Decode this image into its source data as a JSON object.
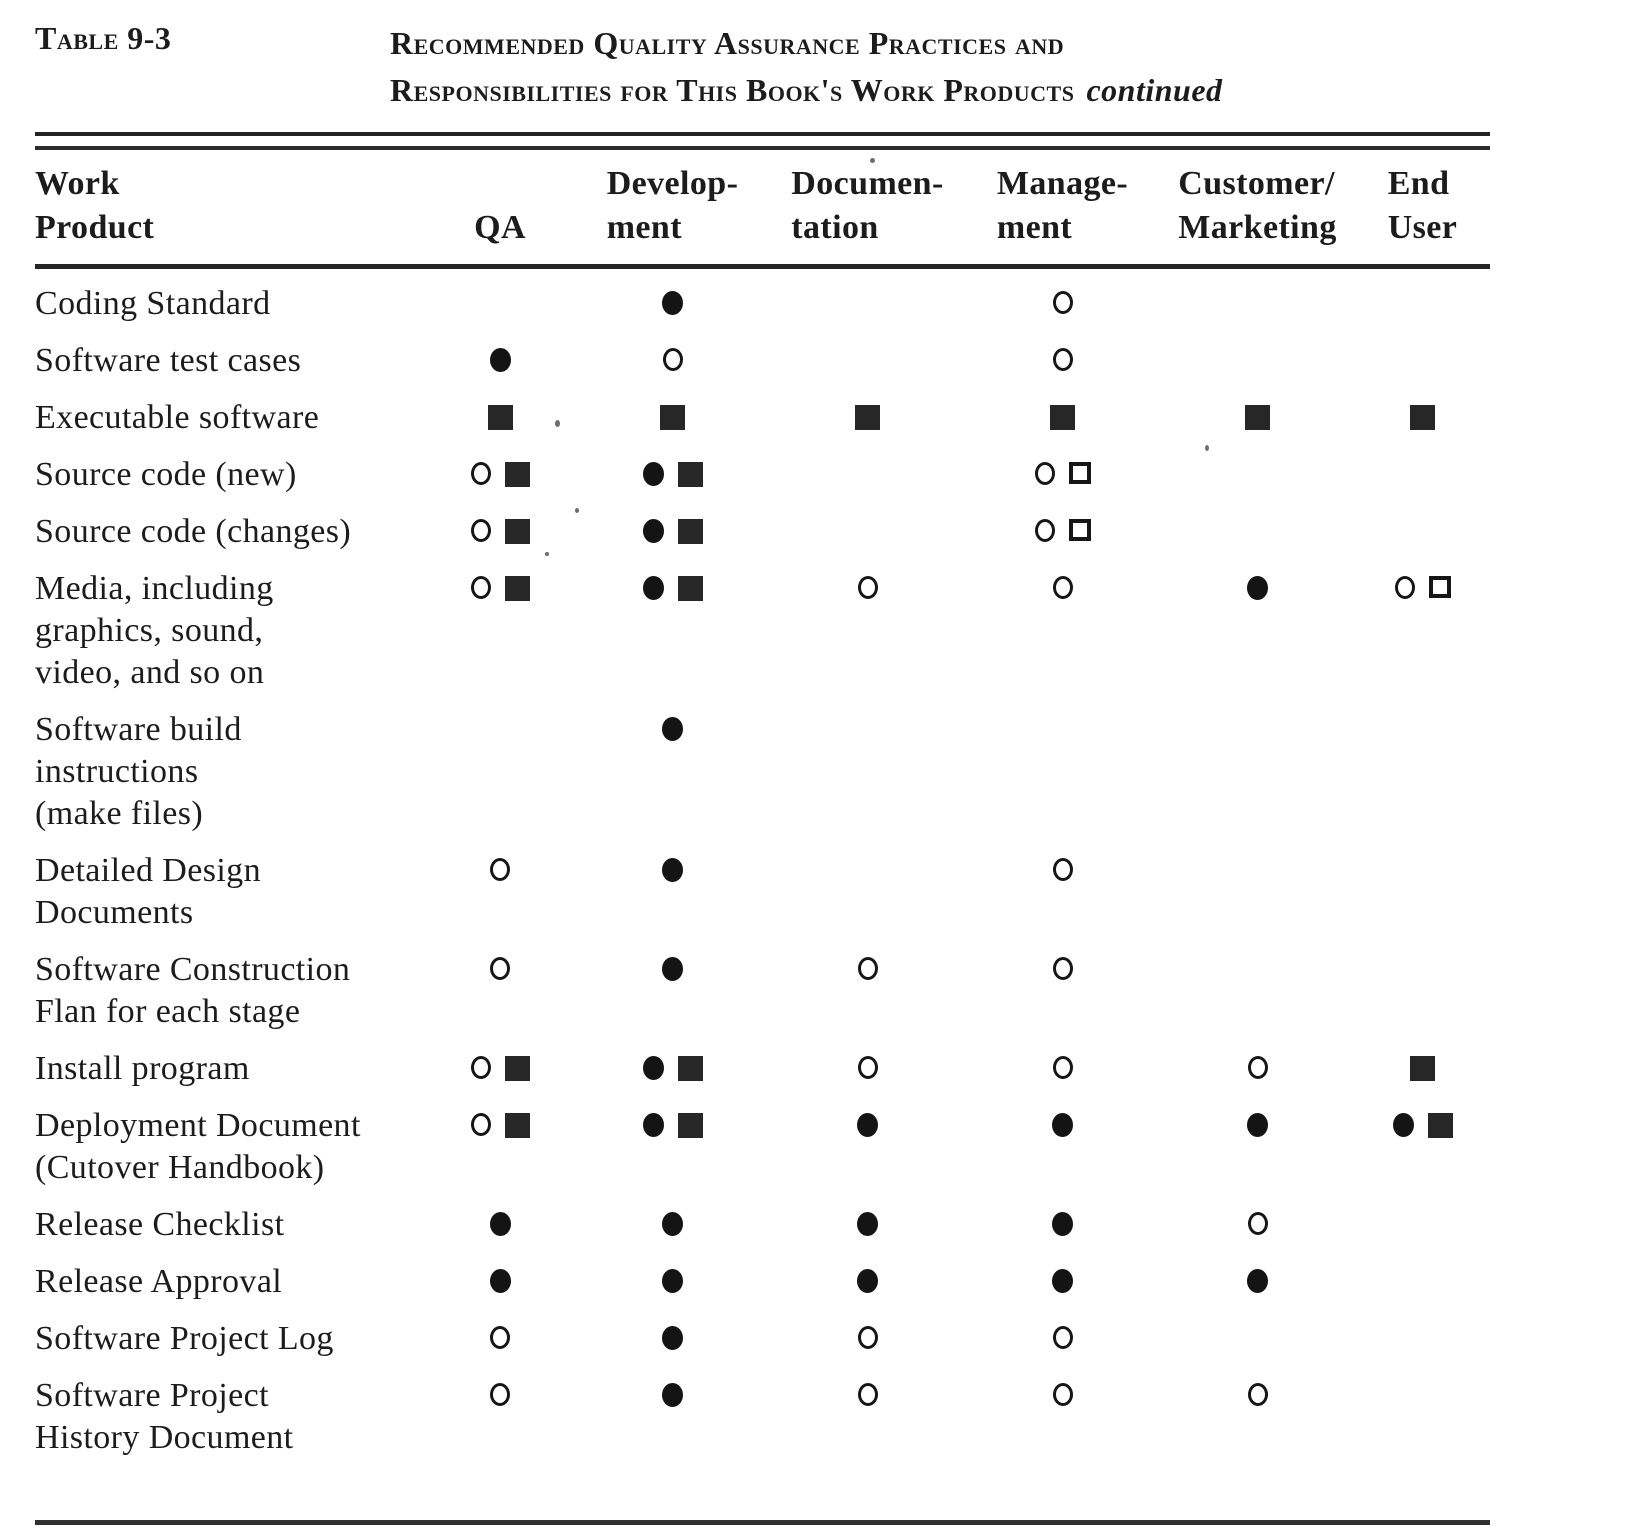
{
  "caption": {
    "label": "Table 9-3",
    "title_line1": "Recommended Quality Assurance Practices and",
    "title_line2": "Responsibilities for This Book's Work Products",
    "continued": "continued"
  },
  "icons": {
    "filled-circle-icon": "●",
    "open-circle-icon": "○",
    "filled-square-icon": "■",
    "open-square-icon": "□"
  },
  "table": {
    "header": {
      "work_product": "Work\nProduct",
      "keys": [
        "qa",
        "development",
        "documentation",
        "management",
        "customer-marketing",
        "end-user"
      ],
      "columns": [
        "QA",
        "Develop-\nment",
        "Documen-\ntation",
        "Manage-\nment",
        "Customer/\nMarketing",
        "End\nUser"
      ]
    },
    "rows": [
      {
        "label": "Coding Standard",
        "cells": [
          [],
          [
            "●"
          ],
          [],
          [
            "○"
          ],
          [],
          []
        ]
      },
      {
        "label": "Software test cases",
        "cells": [
          [
            "●"
          ],
          [
            "○"
          ],
          [],
          [
            "○"
          ],
          [],
          []
        ]
      },
      {
        "label": "Executable software",
        "cells": [
          [
            "■"
          ],
          [
            "■"
          ],
          [
            "■"
          ],
          [
            "■"
          ],
          [
            "■"
          ],
          [
            "■"
          ]
        ]
      },
      {
        "label": "Source code (new)",
        "cells": [
          [
            "○",
            "■"
          ],
          [
            "●",
            "■"
          ],
          [],
          [
            "○",
            "□"
          ],
          [],
          []
        ]
      },
      {
        "label": "Source code (changes)",
        "cells": [
          [
            "○",
            "■"
          ],
          [
            "●",
            "■"
          ],
          [],
          [
            "○",
            "□"
          ],
          [],
          []
        ]
      },
      {
        "label": "Media, including\ngraphics, sound,\nvideo, and so on",
        "cells": [
          [
            "○",
            "■"
          ],
          [
            "●",
            "■"
          ],
          [
            "○"
          ],
          [
            "○"
          ],
          [
            "●"
          ],
          [
            "○",
            "□"
          ]
        ]
      },
      {
        "label": "Software build\ninstructions\n(make files)",
        "cells": [
          [],
          [
            "●"
          ],
          [],
          [],
          [],
          []
        ]
      },
      {
        "label": "Detailed Design\nDocuments",
        "cells": [
          [
            "○"
          ],
          [
            "●"
          ],
          [],
          [
            "○"
          ],
          [],
          []
        ]
      },
      {
        "label": "Software Construction\nFlan for each stage",
        "cells": [
          [
            "○"
          ],
          [
            "●"
          ],
          [
            "○"
          ],
          [
            "○"
          ],
          [],
          []
        ]
      },
      {
        "label": "Install program",
        "cells": [
          [
            "○",
            "■"
          ],
          [
            "●",
            "■"
          ],
          [
            "○"
          ],
          [
            "○"
          ],
          [
            "○"
          ],
          [
            "■"
          ]
        ]
      },
      {
        "label": "Deployment Document\n(Cutover Handbook)",
        "cells": [
          [
            "○",
            "■"
          ],
          [
            "●",
            "■"
          ],
          [
            "●"
          ],
          [
            "●"
          ],
          [
            "●"
          ],
          [
            "●",
            "■"
          ]
        ]
      },
      {
        "label": "Release Checklist",
        "cells": [
          [
            "●"
          ],
          [
            "●"
          ],
          [
            "●"
          ],
          [
            "●"
          ],
          [
            "○"
          ],
          []
        ]
      },
      {
        "label": "Release Approval",
        "cells": [
          [
            "●"
          ],
          [
            "●"
          ],
          [
            "●"
          ],
          [
            "●"
          ],
          [
            "●"
          ],
          []
        ]
      },
      {
        "label": "Software Project Log",
        "cells": [
          [
            "○"
          ],
          [
            "●"
          ],
          [
            "○"
          ],
          [
            "○"
          ],
          [],
          []
        ]
      },
      {
        "label": "Software Project\nHistory Document",
        "cells": [
          [
            "○"
          ],
          [
            "●"
          ],
          [
            "○"
          ],
          [
            "○"
          ],
          [
            "○"
          ],
          []
        ]
      }
    ]
  },
  "colors": {
    "ink": "#1c1c1c",
    "paper": "#ffffff"
  }
}
